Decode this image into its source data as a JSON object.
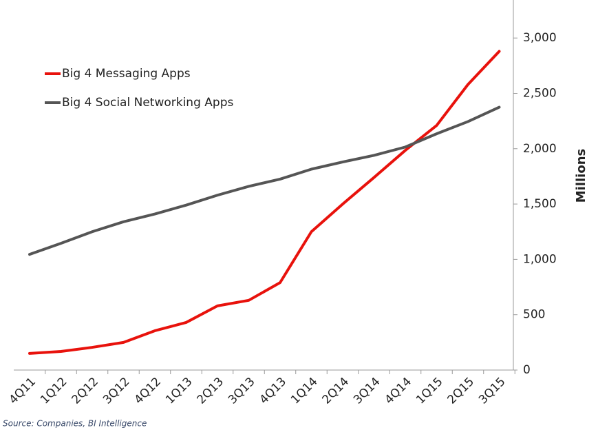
{
  "chart_data": {
    "type": "line",
    "categories": [
      "4Q11",
      "1Q12",
      "2Q12",
      "3Q12",
      "4Q12",
      "1Q13",
      "2Q13",
      "3Q13",
      "4Q13",
      "1Q14",
      "2Q14",
      "3Q14",
      "4Q14",
      "1Q15",
      "2Q15",
      "3Q15"
    ],
    "series": [
      {
        "name": "Big 4 Messaging Apps",
        "color": "#e8120c",
        "values": [
          150,
          168,
          205,
          250,
          355,
          430,
          580,
          630,
          790,
          1250,
          1500,
          1740,
          1985,
          2210,
          2580,
          2880
        ]
      },
      {
        "name": "Big 4 Social Networking Apps",
        "color": "#555555",
        "values": [
          1045,
          1145,
          1250,
          1340,
          1410,
          1490,
          1580,
          1660,
          1725,
          1815,
          1880,
          1940,
          2015,
          2135,
          2245,
          2375
        ]
      }
    ],
    "y_label": "Millions",
    "ylim": [
      0,
      3300
    ],
    "yticks": [
      0,
      {
        "value": 500,
        "label": "500"
      },
      {
        "value": 1000,
        "label": "1,000"
      },
      {
        "value": 1500,
        "label": "1,500"
      },
      {
        "value": 2000,
        "label": "2,000"
      },
      {
        "value": 2500,
        "label": "2,500"
      },
      {
        "value": 3000,
        "label": "3,000"
      }
    ],
    "source": "Source: Companies, BI Intelligence",
    "legend": "upper-left"
  }
}
